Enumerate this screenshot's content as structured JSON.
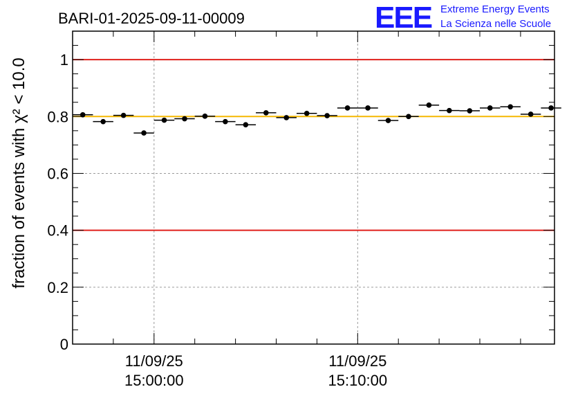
{
  "chart_data": {
    "type": "scatter",
    "title": "BARI-01-2025-09-11-00009",
    "logo": {
      "letters": "EEE",
      "line1": "Extreme Energy Events",
      "line2": "La Scienza nelle Scuole"
    },
    "ylabel": "fraction of events with χ² < 10.0",
    "ylim": [
      0,
      1.1
    ],
    "yticks": [
      {
        "value": 0,
        "label": "0"
      },
      {
        "value": 0.2,
        "label": "0.2"
      },
      {
        "value": 0.4,
        "label": "0.4"
      },
      {
        "value": 0.6,
        "label": "0.6"
      },
      {
        "value": 0.8,
        "label": "0.8"
      },
      {
        "value": 1,
        "label": "1"
      }
    ],
    "xlim": [
      "2025-09-11 14:56:00",
      "2025-09-11 15:19:40"
    ],
    "xticks": [
      {
        "value": "2025-09-11 15:00:00",
        "date": "11/09/25",
        "time": "15:00:00"
      },
      {
        "value": "2025-09-11 15:10:00",
        "date": "11/09/25",
        "time": "15:10:00"
      }
    ],
    "grid": true,
    "reference_lines": [
      {
        "y": 1.0,
        "color": "#e0201b"
      },
      {
        "y": 0.4,
        "color": "#e0201b"
      },
      {
        "y": 0.8,
        "color": "#f5b800"
      }
    ],
    "series": [
      {
        "color": "#000000",
        "bin_minutes": 1,
        "points": [
          {
            "x": "2025-09-11 14:56:00",
            "y": 0.806
          },
          {
            "x": "2025-09-11 14:57:00",
            "y": 0.782
          },
          {
            "x": "2025-09-11 14:58:00",
            "y": 0.804
          },
          {
            "x": "2025-09-11 14:59:00",
            "y": 0.742
          },
          {
            "x": "2025-09-11 15:00:00",
            "y": 0.787
          },
          {
            "x": "2025-09-11 15:01:00",
            "y": 0.792
          },
          {
            "x": "2025-09-11 15:02:00",
            "y": 0.801
          },
          {
            "x": "2025-09-11 15:03:00",
            "y": 0.782
          },
          {
            "x": "2025-09-11 15:04:00",
            "y": 0.771
          },
          {
            "x": "2025-09-11 15:05:00",
            "y": 0.813
          },
          {
            "x": "2025-09-11 15:06:00",
            "y": 0.796
          },
          {
            "x": "2025-09-11 15:07:00",
            "y": 0.811
          },
          {
            "x": "2025-09-11 15:08:00",
            "y": 0.803
          },
          {
            "x": "2025-09-11 15:09:00",
            "y": 0.83
          },
          {
            "x": "2025-09-11 15:10:00",
            "y": 0.83
          },
          {
            "x": "2025-09-11 15:11:00",
            "y": 0.786
          },
          {
            "x": "2025-09-11 15:12:00",
            "y": 0.8
          },
          {
            "x": "2025-09-11 15:13:00",
            "y": 0.84
          },
          {
            "x": "2025-09-11 15:14:00",
            "y": 0.821
          },
          {
            "x": "2025-09-11 15:15:00",
            "y": 0.82
          },
          {
            "x": "2025-09-11 15:16:00",
            "y": 0.83
          },
          {
            "x": "2025-09-11 15:17:00",
            "y": 0.834
          },
          {
            "x": "2025-09-11 15:18:00",
            "y": 0.808
          },
          {
            "x": "2025-09-11 15:19:00",
            "y": 0.83
          }
        ]
      }
    ]
  }
}
